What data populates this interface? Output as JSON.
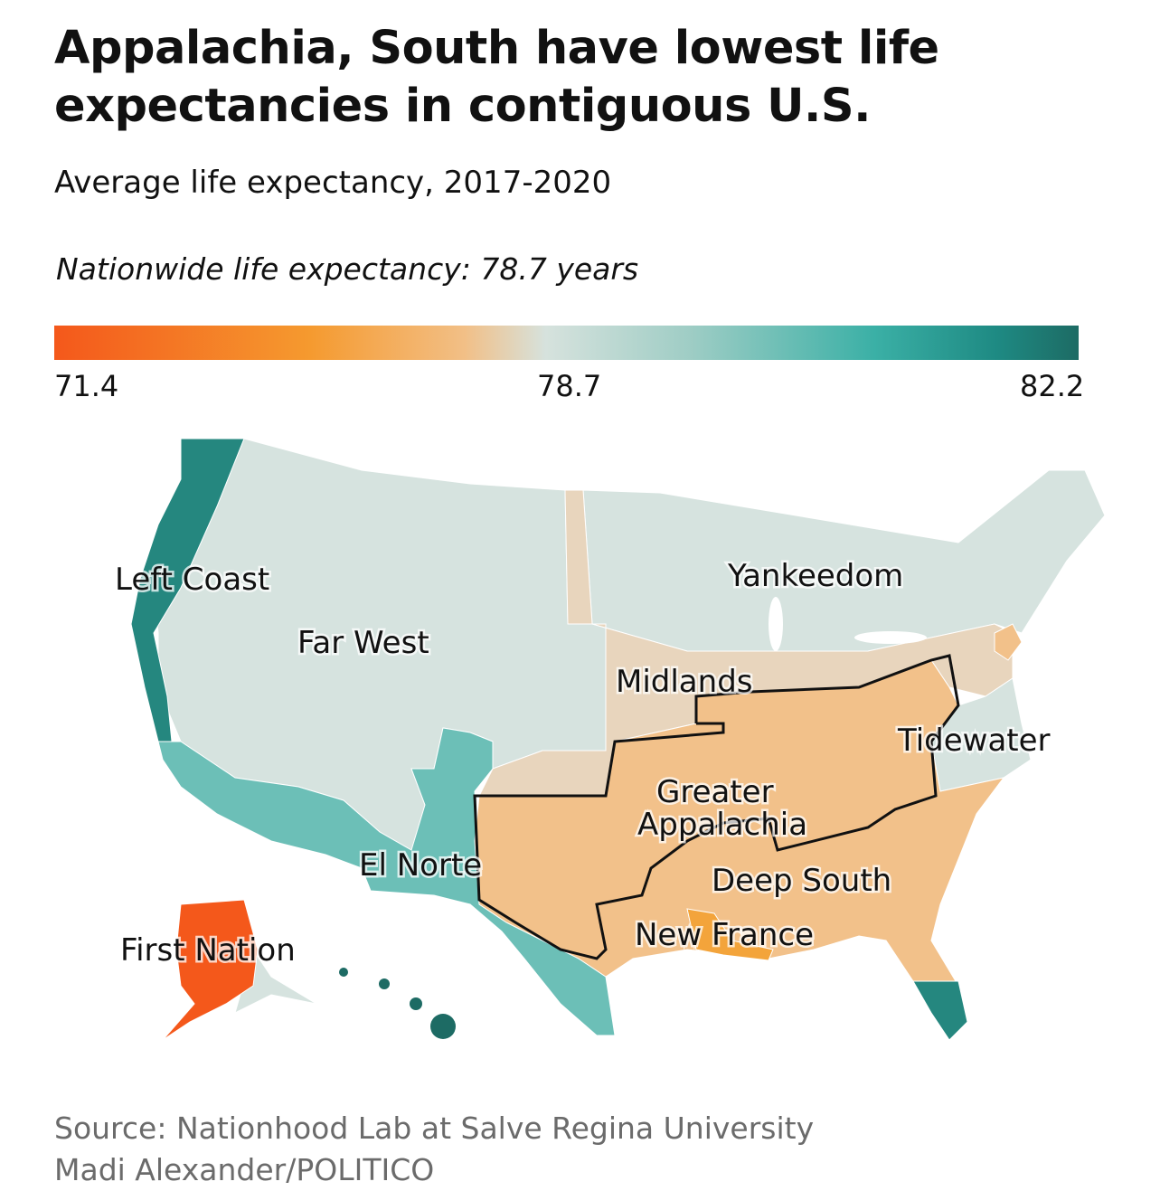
{
  "header": {
    "title": "Appalachia, South have lowest life expectancies in contiguous U.S.",
    "subtitle": "Average life expectancy, 2017-2020",
    "note": "Nationwide life expectancy: 78.7 years"
  },
  "legend": {
    "min": "71.4",
    "mid": "78.7",
    "max": "82.2",
    "colors": [
      "#f4581b",
      "#f59a2f",
      "#f2bf86",
      "#d6e2dd",
      "#9fcdc5",
      "#3bb0a6",
      "#1d6b64"
    ]
  },
  "map": {
    "regions": [
      {
        "label": "Left Coast",
        "color": "#25877f"
      },
      {
        "label": "Far West",
        "color": "#d6e3df"
      },
      {
        "label": "Yankeedom",
        "color": "#d6e3df"
      },
      {
        "label": "Midlands",
        "color": "#e8d5bd"
      },
      {
        "label": "Tidewater",
        "color": "#d6e3df"
      },
      {
        "label": "Greater Appalachia",
        "color": "#f2c18a"
      },
      {
        "label": "El Norte",
        "color": "#6cbfb7"
      },
      {
        "label": "Deep South",
        "color": "#f2c18a"
      },
      {
        "label": "New France",
        "color": "#f3a43b"
      },
      {
        "label": "First Nation",
        "color": "#f4581b"
      }
    ],
    "greater_appalachia_line1": "Greater",
    "greater_appalachia_line2": "Appalachia"
  },
  "footer": {
    "source": "Source: Nationhood Lab at Salve Regina University",
    "credit": "Madi Alexander/POLITICO"
  }
}
